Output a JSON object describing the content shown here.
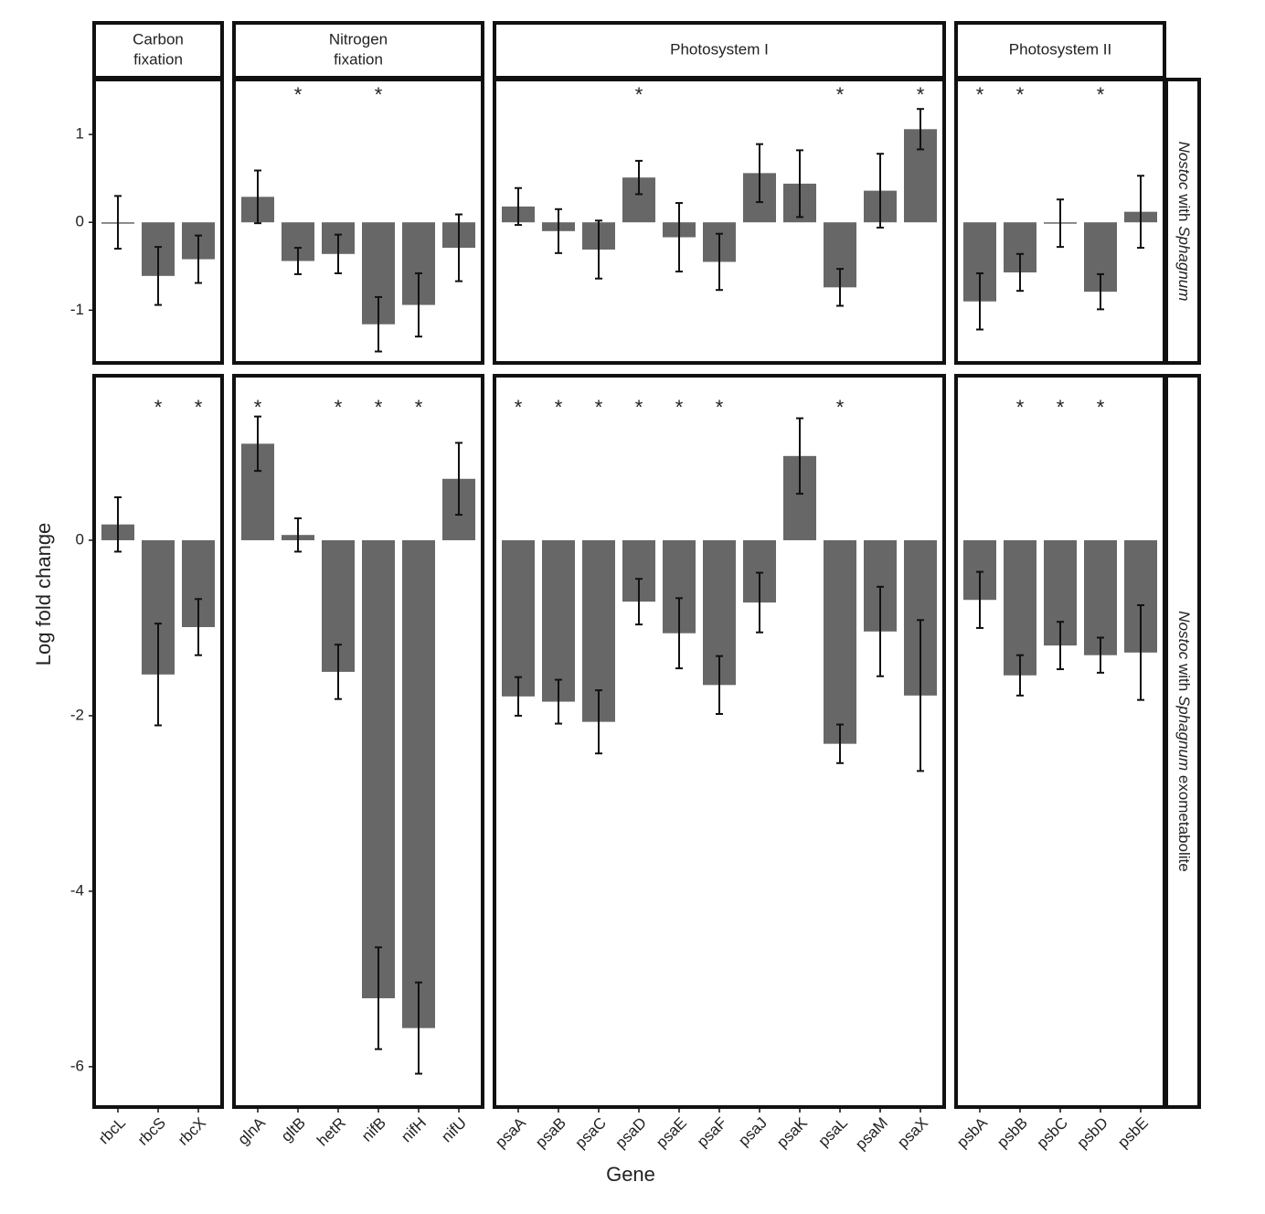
{
  "chart_data": {
    "type": "bar",
    "x_label": "Gene",
    "y_label": "Log fold change",
    "color": "#676767",
    "sig_label": "*",
    "groups": [
      {
        "title": [
          "Carbon",
          "fixation"
        ],
        "categories": [
          "rbcL",
          "rbcS",
          "rbcX"
        ]
      },
      {
        "title": [
          "Nitrogen",
          "fixation"
        ],
        "categories": [
          "glnA",
          "gltB",
          "hetR",
          "nifB",
          "nifH",
          "nifU"
        ]
      },
      {
        "title": [
          "Photosystem I"
        ],
        "categories": [
          "psaA",
          "psaB",
          "psaC",
          "psaD",
          "psaE",
          "psaF",
          "psaJ",
          "psaK",
          "psaL",
          "psaM",
          "psaX"
        ]
      },
      {
        "title": [
          "Photosystem II"
        ],
        "categories": [
          "psbA",
          "psbB",
          "psbC",
          "psbD",
          "psbE"
        ]
      }
    ],
    "rows": [
      {
        "label": [
          {
            "text": "Nostoc",
            "italic": true
          },
          {
            "text": " with ",
            "italic": false
          },
          {
            "text": "Sphagnum",
            "italic": true
          }
        ],
        "ylim": [
          -1.6,
          1.625
        ],
        "yticks": [
          -1,
          0,
          1
        ],
        "values": [
          [
            0.0,
            -0.61,
            -0.42
          ],
          [
            0.29,
            -0.44,
            -0.36,
            -1.16,
            -0.94,
            -0.29
          ],
          [
            0.18,
            -0.1,
            -0.31,
            0.51,
            -0.17,
            -0.45,
            0.56,
            0.44,
            -0.74,
            0.36,
            1.06
          ],
          [
            -0.9,
            -0.57,
            -0.01,
            -0.79,
            0.12
          ]
        ],
        "errors": [
          [
            0.3,
            0.33,
            0.27
          ],
          [
            0.3,
            0.15,
            0.22,
            0.31,
            0.36,
            0.38
          ],
          [
            0.21,
            0.25,
            0.33,
            0.19,
            0.39,
            0.32,
            0.33,
            0.38,
            0.21,
            0.42,
            0.23
          ],
          [
            0.32,
            0.21,
            0.27,
            0.2,
            0.41
          ]
        ],
        "significant": [
          [
            false,
            false,
            false
          ],
          [
            false,
            true,
            false,
            true,
            false,
            false
          ],
          [
            false,
            false,
            false,
            true,
            false,
            false,
            false,
            false,
            true,
            false,
            true
          ],
          [
            true,
            true,
            false,
            true,
            false
          ]
        ]
      },
      {
        "label": [
          {
            "text": "Nostoc",
            "italic": true
          },
          {
            "text": " with ",
            "italic": false
          },
          {
            "text": "Sphagnum",
            "italic": true
          },
          {
            "text": " exometabolite",
            "italic": false
          }
        ],
        "ylim": [
          -6.46,
          1.875
        ],
        "yticks": [
          -6,
          -4,
          -2,
          0
        ],
        "values": [
          [
            0.18,
            -1.53,
            -0.99
          ],
          [
            1.1,
            0.06,
            -1.5,
            -5.22,
            -5.56,
            0.7
          ],
          [
            -1.78,
            -1.84,
            -2.07,
            -0.7,
            -1.06,
            -1.65,
            -0.71,
            0.96,
            -2.32,
            -1.04,
            -1.77
          ],
          [
            -0.68,
            -1.54,
            -1.2,
            -1.31,
            -1.28
          ]
        ],
        "errors": [
          [
            0.31,
            0.58,
            0.32
          ],
          [
            0.31,
            0.19,
            0.31,
            0.58,
            0.52,
            0.41
          ],
          [
            0.22,
            0.25,
            0.36,
            0.26,
            0.4,
            0.33,
            0.34,
            0.43,
            0.22,
            0.51,
            0.86
          ],
          [
            0.32,
            0.23,
            0.27,
            0.2,
            0.54
          ]
        ],
        "significant": [
          [
            false,
            true,
            true
          ],
          [
            true,
            false,
            true,
            true,
            true,
            false
          ],
          [
            true,
            true,
            true,
            true,
            true,
            true,
            false,
            false,
            true,
            false,
            false
          ],
          [
            false,
            true,
            true,
            true,
            false
          ]
        ]
      }
    ]
  }
}
